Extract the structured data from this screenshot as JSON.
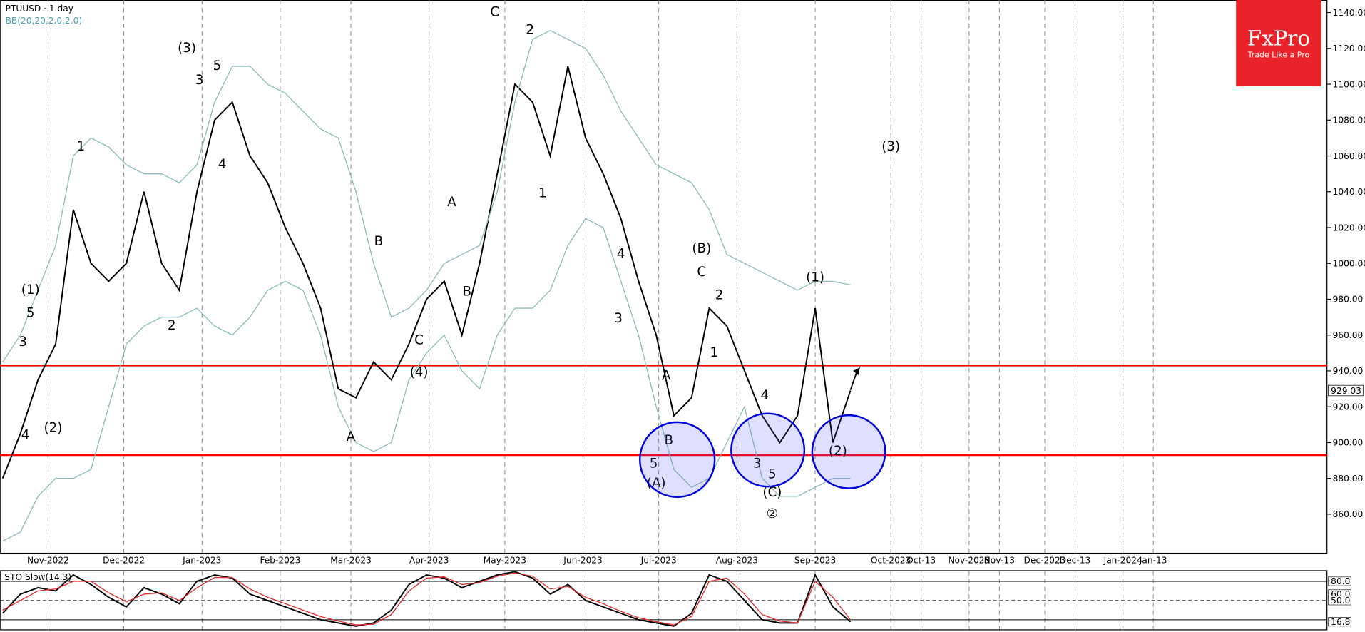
{
  "chart_data": [
    {
      "type": "line",
      "title": "PTUUSD · 1 day",
      "subtitle": "BB(20,20,2.0,2.0)",
      "logo": "FxPro",
      "logo_tagline": "Trade Like a Pro",
      "x": [
        "2022-10-14",
        "2022-10-21",
        "2022-10-28",
        "2022-11-04",
        "2022-11-11",
        "2022-11-18",
        "2022-11-25",
        "2022-12-02",
        "2022-12-09",
        "2022-12-16",
        "2022-12-23",
        "2022-12-30",
        "2023-01-06",
        "2023-01-13",
        "2023-01-20",
        "2023-01-27",
        "2023-02-03",
        "2023-02-10",
        "2023-02-17",
        "2023-02-24",
        "2023-03-03",
        "2023-03-10",
        "2023-03-17",
        "2023-03-24",
        "2023-03-31",
        "2023-04-07",
        "2023-04-14",
        "2023-04-21",
        "2023-04-28",
        "2023-05-05",
        "2023-05-12",
        "2023-05-19",
        "2023-05-26",
        "2023-06-02",
        "2023-06-09",
        "2023-06-16",
        "2023-06-23",
        "2023-06-30",
        "2023-07-07",
        "2023-07-14",
        "2023-07-21",
        "2023-07-28",
        "2023-08-04",
        "2023-08-11",
        "2023-08-18",
        "2023-08-25",
        "2023-09-01",
        "2023-09-08",
        "2023-09-15"
      ],
      "series": [
        {
          "color": "#000000",
          "values": [
            880,
            905,
            935,
            955,
            1030,
            1000,
            990,
            1000,
            1040,
            1000,
            985,
            1040,
            1080,
            1090,
            1060,
            1045,
            1020,
            1000,
            975,
            930,
            925,
            945,
            935,
            955,
            980,
            990,
            960,
            1000,
            1050,
            1100,
            1090,
            1060,
            1110,
            1070,
            1050,
            1025,
            990,
            960,
            915,
            925,
            975,
            965,
            940,
            915,
            900,
            915,
            975,
            900,
            929.03
          ],
          "value_labels": [
            null,
            null,
            null,
            null,
            null,
            null,
            null,
            null,
            null,
            null,
            null,
            null,
            null,
            null,
            null,
            null,
            null,
            null,
            null,
            null,
            null,
            null,
            null,
            null,
            null,
            null,
            null,
            null,
            null,
            null,
            null,
            null,
            null,
            null,
            null,
            null,
            null,
            null,
            null,
            null,
            null,
            null,
            null,
            null,
            null,
            null,
            null,
            null,
            "929.03"
          ]
        },
        {
          "color": "#8fbcbc",
          "values": [
            945,
            960,
            985,
            1010,
            1060,
            1070,
            1065,
            1055,
            1050,
            1050,
            1045,
            1055,
            1090,
            1110,
            1110,
            1100,
            1095,
            1085,
            1075,
            1070,
            1040,
            1000,
            970,
            975,
            985,
            1000,
            1005,
            1010,
            1040,
            1090,
            1125,
            1130,
            1125,
            1120,
            1105,
            1085,
            1070,
            1055,
            1050,
            1045,
            1030,
            1005,
            1000,
            995,
            990,
            985,
            990,
            990,
            988
          ]
        },
        {
          "color": "#8fbcbc",
          "values": [
            845,
            850,
            870,
            880,
            880,
            885,
            920,
            955,
            965,
            970,
            970,
            975,
            965,
            960,
            970,
            985,
            990,
            985,
            960,
            920,
            900,
            895,
            900,
            935,
            950,
            960,
            940,
            930,
            960,
            975,
            975,
            985,
            1010,
            1025,
            1020,
            990,
            960,
            920,
            885,
            875,
            880,
            900,
            920,
            880,
            870,
            870,
            875,
            880,
            880
          ]
        }
      ],
      "xlim": [
        "2022-10-13",
        "2024-03-22"
      ],
      "xticks": [
        {
          "value": "2022-11-01",
          "label": "Nov-2022"
        },
        {
          "value": "2022-12-01",
          "label": "Dec-2022"
        },
        {
          "value": "2023-01-01",
          "label": "Jan-2023"
        },
        {
          "value": "2023-02-01",
          "label": "Feb-2023"
        },
        {
          "value": "2023-03-01",
          "label": "Mar-2023"
        },
        {
          "value": "2023-04-01",
          "label": "Apr-2023"
        },
        {
          "value": "2023-05-01",
          "label": "May-2023"
        },
        {
          "value": "2023-06-01",
          "label": "Jun-2023"
        },
        {
          "value": "2023-07-01",
          "label": "Jul-2023"
        },
        {
          "value": "2023-08-01",
          "label": "Aug-2023"
        },
        {
          "value": "2023-09-01",
          "label": "Sep-2023"
        },
        {
          "value": "2023-10-01",
          "label": "Oct-2023"
        },
        {
          "value": "2023-10-13",
          "label": "Oct-13"
        },
        {
          "value": "2023-11-01",
          "label": "Nov-2023"
        },
        {
          "value": "2023-11-13",
          "label": "Nov-13"
        },
        {
          "value": "2023-12-01",
          "label": "Dec-2023"
        },
        {
          "value": "2023-12-13",
          "label": "Dec-13"
        },
        {
          "value": "2024-01-01",
          "label": "Jan-2024"
        },
        {
          "value": "2024-01-13",
          "label": "Jan-13"
        }
      ],
      "ylim": [
        838,
        1147
      ],
      "yticks": [
        {
          "value": 860,
          "label": "860.00"
        },
        {
          "value": 880,
          "label": "880.00"
        },
        {
          "value": 900,
          "label": "900.00"
        },
        {
          "value": 920,
          "label": "920.00"
        },
        {
          "value": 940,
          "label": "940.00"
        },
        {
          "value": 960,
          "label": "960.00"
        },
        {
          "value": 980,
          "label": "980.00"
        },
        {
          "value": 1000,
          "label": "1000.00"
        },
        {
          "value": 1020,
          "label": "1020.00"
        },
        {
          "value": 1040,
          "label": "1040.00"
        },
        {
          "value": 1060,
          "label": "1060.00"
        },
        {
          "value": 1080,
          "label": "1080.00"
        },
        {
          "value": 1100,
          "label": "1100.00"
        },
        {
          "value": 1120,
          "label": "1120.00"
        },
        {
          "value": 1140,
          "label": "1140.00"
        }
      ],
      "levels": [
        943,
        893
      ],
      "level_color": "#ff0000",
      "grid": true,
      "annotations": [
        {
          "text": "(1)",
          "x": "2022-10-25",
          "y": 983
        },
        {
          "text": "5",
          "x": "2022-10-25",
          "y": 970
        },
        {
          "text": "3",
          "x": "2022-10-22",
          "y": 954
        },
        {
          "text": "4",
          "x": "2022-10-23",
          "y": 902
        },
        {
          "text": "(2)",
          "x": "2022-11-03",
          "y": 906
        },
        {
          "text": "1",
          "x": "2022-11-14",
          "y": 1063
        },
        {
          "text": "2",
          "x": "2022-12-20",
          "y": 963
        },
        {
          "text": "(3)",
          "x": "2022-12-26",
          "y": 1118
        },
        {
          "text": "3",
          "x": "2022-12-31",
          "y": 1100
        },
        {
          "text": "5",
          "x": "2023-01-07",
          "y": 1108
        },
        {
          "text": "4",
          "x": "2023-01-09",
          "y": 1053
        },
        {
          "text": "A",
          "x": "2023-03-01",
          "y": 901
        },
        {
          "text": "B",
          "x": "2023-03-12",
          "y": 1010
        },
        {
          "text": "C",
          "x": "2023-03-28",
          "y": 955
        },
        {
          "text": "(4)",
          "x": "2023-03-28",
          "y": 937
        },
        {
          "text": "A",
          "x": "2023-04-10",
          "y": 1032
        },
        {
          "text": "B",
          "x": "2023-04-16",
          "y": 982
        },
        {
          "text": "C",
          "x": "2023-04-27",
          "y": 1138
        },
        {
          "text": "2",
          "x": "2023-05-11",
          "y": 1128
        },
        {
          "text": "1",
          "x": "2023-05-16",
          "y": 1037
        },
        {
          "text": "4",
          "x": "2023-06-16",
          "y": 1003
        },
        {
          "text": "3",
          "x": "2023-06-15",
          "y": 967
        },
        {
          "text": "5",
          "x": "2023-06-29",
          "y": 886
        },
        {
          "text": "(A)",
          "x": "2023-06-30",
          "y": 875
        },
        {
          "text": "B",
          "x": "2023-07-05",
          "y": 899
        },
        {
          "text": "A",
          "x": "2023-07-04",
          "y": 935
        },
        {
          "text": "(B)",
          "x": "2023-07-18",
          "y": 1006
        },
        {
          "text": "C",
          "x": "2023-07-18",
          "y": 993
        },
        {
          "text": "2",
          "x": "2023-07-25",
          "y": 980
        },
        {
          "text": "1",
          "x": "2023-07-23",
          "y": 948
        },
        {
          "text": "4",
          "x": "2023-08-12",
          "y": 924
        },
        {
          "text": "3",
          "x": "2023-08-09",
          "y": 886
        },
        {
          "text": "5",
          "x": "2023-08-15",
          "y": 880
        },
        {
          "text": "(C)",
          "x": "2023-08-15",
          "y": 870
        },
        {
          "text": "②",
          "x": "2023-08-15",
          "y": 858
        },
        {
          "text": "(1)",
          "x": "2023-09-01",
          "y": 990
        },
        {
          "text": "(2)",
          "x": "2023-09-10",
          "y": 893
        },
        {
          "text": "(3)",
          "x": "2023-10-01",
          "y": 1063
        }
      ]
    },
    {
      "type": "line",
      "title": "STO Slow(14,3)",
      "series": [
        {
          "color": "#000000",
          "values": [
            30,
            60,
            70,
            65,
            90,
            75,
            55,
            40,
            70,
            60,
            45,
            80,
            90,
            85,
            60,
            50,
            40,
            30,
            20,
            15,
            10,
            15,
            35,
            75,
            90,
            85,
            70,
            80,
            90,
            95,
            85,
            60,
            75,
            50,
            40,
            30,
            20,
            15,
            10,
            30,
            90,
            80,
            50,
            20,
            15,
            15,
            90,
            40,
            16.8
          ]
        },
        {
          "color": "#e03030",
          "values": [
            35,
            50,
            65,
            68,
            80,
            80,
            62,
            48,
            60,
            62,
            50,
            70,
            86,
            86,
            68,
            55,
            45,
            35,
            25,
            18,
            12,
            13,
            28,
            65,
            85,
            87,
            75,
            78,
            88,
            93,
            88,
            68,
            72,
            55,
            45,
            33,
            23,
            17,
            12,
            25,
            80,
            85,
            60,
            28,
            18,
            15,
            80,
            55,
            20
          ]
        }
      ],
      "ylim": [
        5,
        96
      ],
      "yticks": [
        {
          "value": 80,
          "label": "80.0"
        },
        {
          "value": 60,
          "label": "60.0"
        },
        {
          "value": 50,
          "label": "50.0"
        },
        16.8
      ],
      "levels": [
        80,
        50,
        20
      ]
    }
  ]
}
